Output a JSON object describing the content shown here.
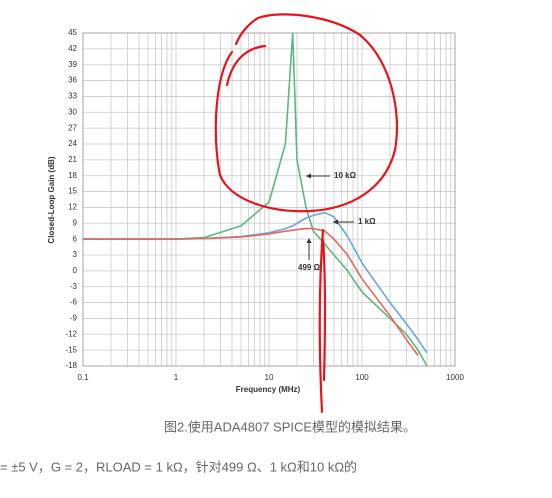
{
  "chart_data": {
    "type": "line",
    "xlabel": "Frequency (MHz)",
    "ylabel": "Closed-Loop Gain (dB)",
    "log_x": true,
    "grid": true,
    "x": [
      0.1,
      1,
      2,
      5,
      10,
      15,
      18,
      20,
      25,
      30,
      40,
      50,
      70,
      100,
      200,
      300,
      400,
      500
    ],
    "series": [
      {
        "name": "10 kΩ",
        "color": "#5cb87a",
        "values": [
          6,
          6,
          6.3,
          8.5,
          13,
          24,
          45,
          21,
          12,
          7.5,
          5,
          3,
          0,
          -4,
          -9,
          -12,
          -15,
          -18
        ]
      },
      {
        "name": "1 kΩ",
        "color": "#6aa6dc",
        "values": [
          6,
          6,
          6.1,
          6.5,
          7.2,
          8,
          8.5,
          9,
          10,
          10.5,
          11,
          10.2,
          6.5,
          1.5,
          -6,
          -10,
          -13,
          -15.5
        ]
      },
      {
        "name": "499 Ω",
        "color": "#e06a5a",
        "values": [
          6,
          6,
          6.1,
          6.4,
          7,
          7.5,
          7.7,
          7.8,
          8,
          8,
          7.5,
          6,
          3,
          -1.5,
          -8.5,
          -13,
          -16,
          null
        ]
      }
    ],
    "xlim": [
      0.1,
      1000
    ],
    "xticks": [
      0.1,
      1,
      10,
      100,
      1000
    ],
    "ylim": [
      -18,
      45
    ],
    "yticks": [
      -18,
      -15,
      -12,
      -9,
      -6,
      -3,
      0,
      3,
      6,
      9,
      12,
      15,
      18,
      21,
      24,
      27,
      30,
      33,
      36,
      39,
      42,
      45
    ],
    "caption": "图2.使用ADA4807 SPICE模型的模拟结果。",
    "note": "= ±5 V，G = 2，RLOAD = 1 kΩ，针对499 Ω、1 kΩ和10 kΩ的"
  }
}
